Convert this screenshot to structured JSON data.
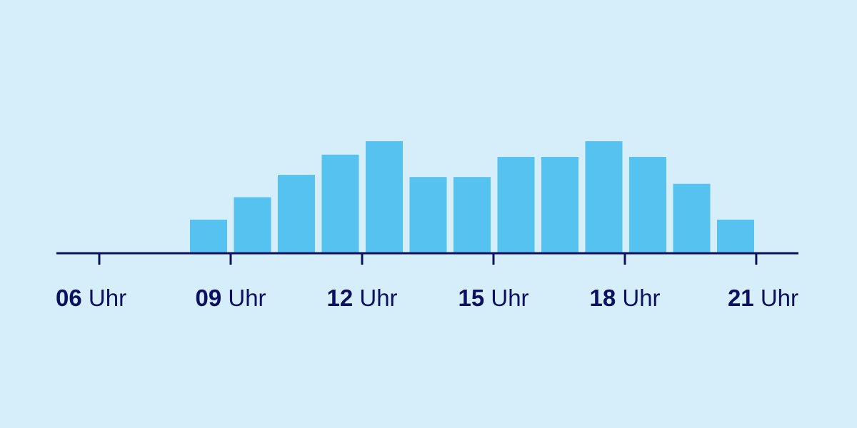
{
  "colors": {
    "background": "#d5eefa",
    "bar": "#55c2ef",
    "axis": "#0b1160",
    "text": "#0b1160"
  },
  "chart_data": {
    "type": "bar",
    "title": "",
    "xlabel": "",
    "ylabel": "",
    "ylim": [
      0,
      100
    ],
    "grid": false,
    "legend": "none",
    "x_unit": "Uhr",
    "xlim": [
      6,
      23
    ],
    "x_ticks": [
      "06",
      "09",
      "12",
      "15",
      "18",
      "21"
    ],
    "categories": [
      "06",
      "07",
      "08",
      "09",
      "10",
      "11",
      "12",
      "13",
      "14",
      "15",
      "16",
      "17",
      "18",
      "19",
      "20",
      "21",
      "22"
    ],
    "values": [
      0,
      0,
      30,
      50,
      70,
      88,
      100,
      68,
      68,
      86,
      86,
      100,
      86,
      62,
      30,
      0,
      0
    ]
  }
}
